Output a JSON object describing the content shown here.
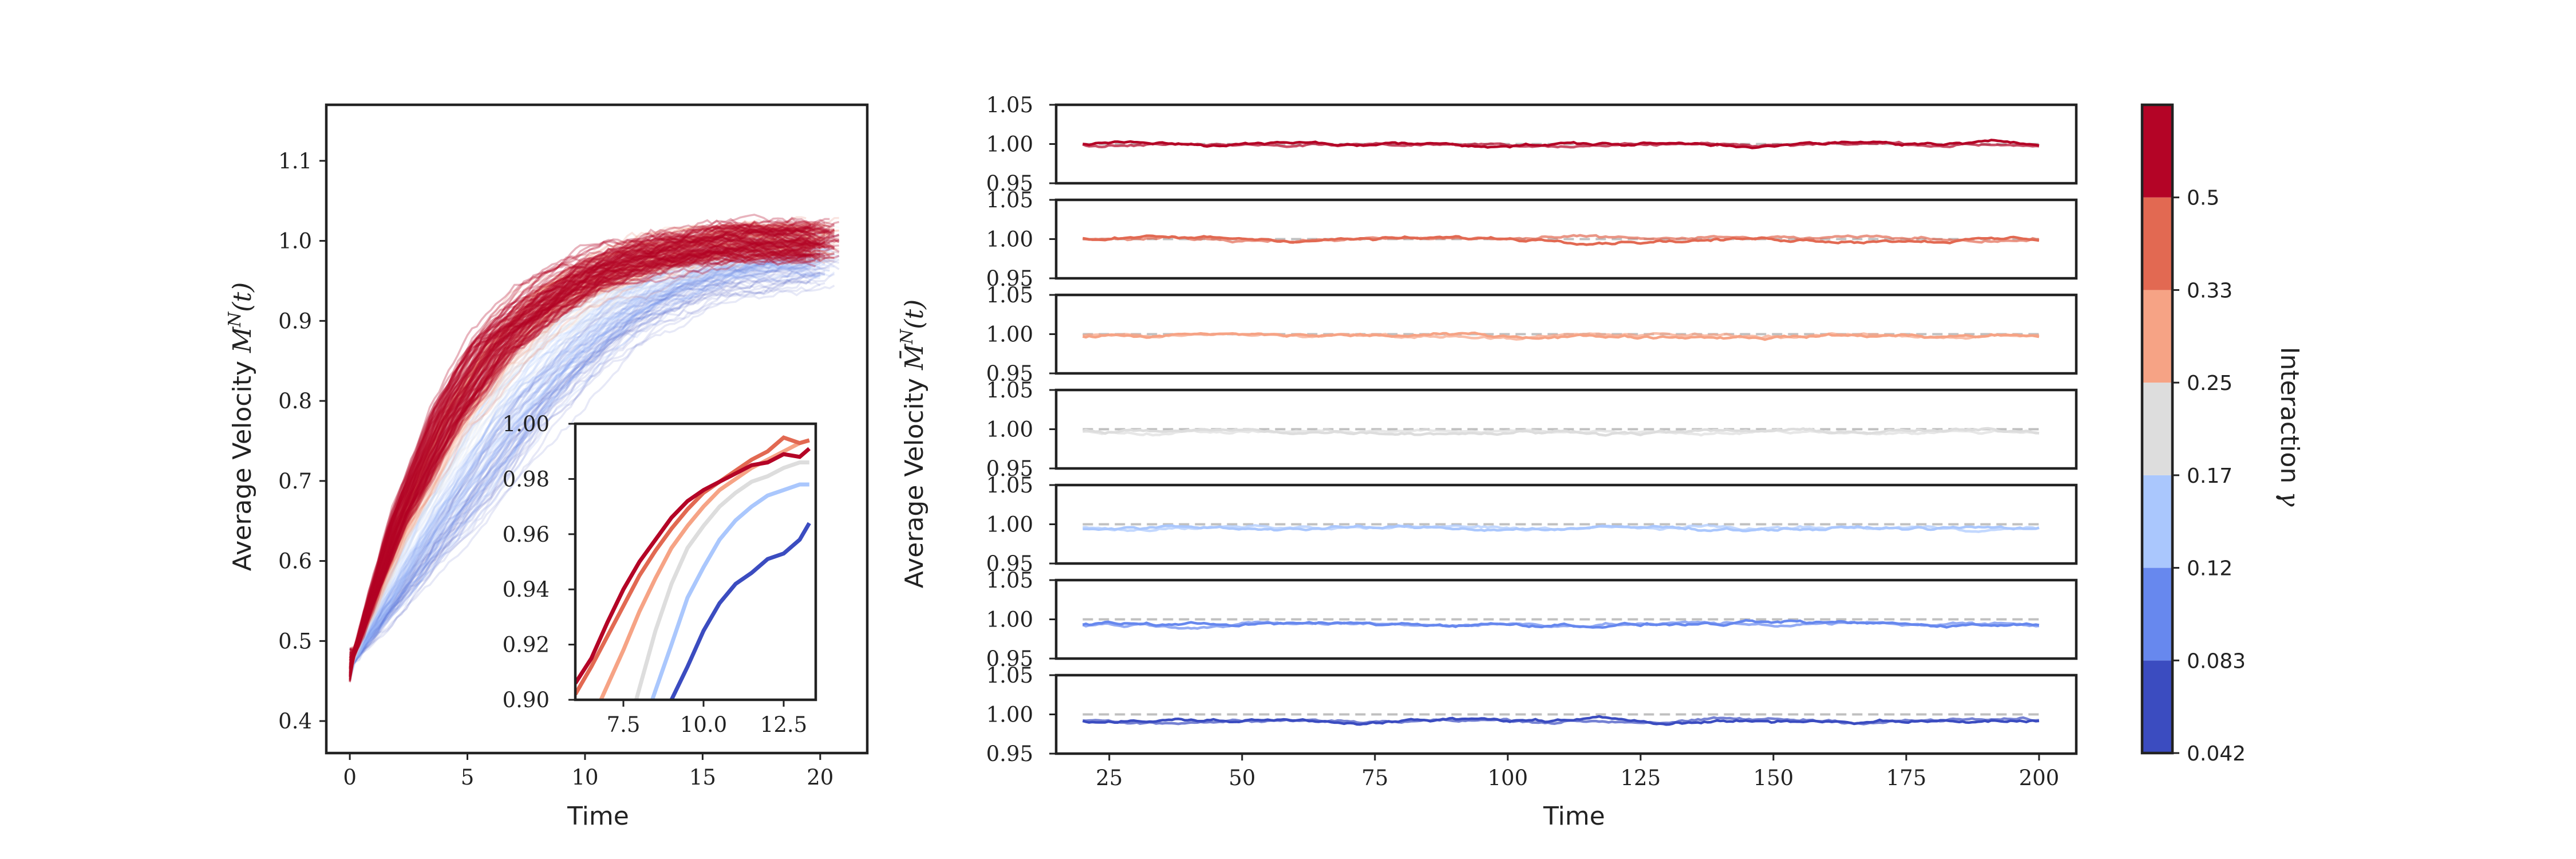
{
  "colors": {
    "palette": [
      "#3b4cc0",
      "#6788ee",
      "#aac7fd",
      "#dddddd",
      "#f6a385",
      "#e26952",
      "#b40426"
    ],
    "reference_line": "#c0c0c0"
  },
  "chart_data": [
    {
      "id": "left",
      "type": "line",
      "xlabel": "Time",
      "ylabel": "Average Velocity M^N(t)",
      "xlim": [
        -1,
        22
      ],
      "ylim": [
        0.36,
        1.17
      ],
      "xticks": [
        "0",
        "5",
        "10",
        "15",
        "20"
      ],
      "yticks": [
        "0.4",
        "0.5",
        "0.6",
        "0.7",
        "0.8",
        "0.9",
        "1.0",
        "1.1"
      ],
      "series_by_gamma": [
        {
          "gamma": 0.042,
          "approx_mean_curve": {
            "x": [
              0,
              2,
              4,
              6,
              8,
              10,
              12,
              14,
              16,
              18,
              20
            ],
            "y": [
              0.47,
              0.55,
              0.63,
              0.71,
              0.79,
              0.85,
              0.9,
              0.93,
              0.95,
              0.96,
              0.97
            ]
          }
        },
        {
          "gamma": 0.083,
          "approx_mean_curve": {
            "x": [
              0,
              2,
              4,
              6,
              8,
              10,
              12,
              14,
              16,
              18,
              20
            ],
            "y": [
              0.47,
              0.56,
              0.65,
              0.73,
              0.81,
              0.87,
              0.92,
              0.95,
              0.97,
              0.98,
              0.98
            ]
          }
        },
        {
          "gamma": 0.12,
          "approx_mean_curve": {
            "x": [
              0,
              2,
              4,
              6,
              8,
              10,
              12,
              14,
              16,
              18,
              20
            ],
            "y": [
              0.47,
              0.58,
              0.68,
              0.77,
              0.84,
              0.9,
              0.94,
              0.96,
              0.98,
              0.99,
              0.99
            ]
          }
        },
        {
          "gamma": 0.17,
          "approx_mean_curve": {
            "x": [
              0,
              2,
              4,
              6,
              8,
              10,
              12,
              14,
              16,
              18,
              20
            ],
            "y": [
              0.47,
              0.62,
              0.74,
              0.83,
              0.89,
              0.93,
              0.96,
              0.98,
              0.99,
              1.0,
              1.0
            ]
          }
        },
        {
          "gamma": 0.25,
          "approx_mean_curve": {
            "x": [
              0,
              2,
              4,
              6,
              8,
              10,
              12,
              14,
              16,
              18,
              20
            ],
            "y": [
              0.47,
              0.63,
              0.76,
              0.85,
              0.91,
              0.95,
              0.97,
              0.99,
              1.0,
              1.0,
              1.0
            ]
          }
        },
        {
          "gamma": 0.33,
          "approx_mean_curve": {
            "x": [
              0,
              2,
              4,
              6,
              8,
              10,
              12,
              14,
              16,
              18,
              20
            ],
            "y": [
              0.47,
              0.64,
              0.77,
              0.86,
              0.92,
              0.95,
              0.98,
              0.99,
              1.0,
              1.0,
              1.0
            ]
          }
        },
        {
          "gamma": 0.5,
          "approx_mean_curve": {
            "x": [
              0,
              2,
              4,
              6,
              8,
              10,
              12,
              14,
              16,
              18,
              20
            ],
            "y": [
              0.47,
              0.65,
              0.78,
              0.87,
              0.92,
              0.96,
              0.98,
              0.99,
              1.0,
              1.0,
              1.0
            ]
          }
        }
      ],
      "inset": {
        "xlim": [
          6,
          13.5
        ],
        "ylim": [
          0.9,
          1.0
        ],
        "xticks": [
          "7.5",
          "10.0",
          "12.5"
        ],
        "yticks": [
          "0.90",
          "0.92",
          "0.94",
          "0.96",
          "0.98",
          "1.00"
        ],
        "series": [
          {
            "gamma": 0.042,
            "x": [
              9.0,
              9.5,
              10.0,
              10.5,
              11.0,
              11.5,
              12.0,
              12.5,
              13.0,
              13.3
            ],
            "y": [
              0.9,
              0.912,
              0.925,
              0.935,
              0.942,
              0.946,
              0.951,
              0.953,
              0.958,
              0.964
            ]
          },
          {
            "gamma": 0.12,
            "x": [
              8.4,
              9.0,
              9.5,
              10.0,
              10.5,
              11.0,
              11.5,
              12.0,
              12.5,
              13.0,
              13.3
            ],
            "y": [
              0.9,
              0.92,
              0.937,
              0.948,
              0.958,
              0.965,
              0.97,
              0.974,
              0.976,
              0.978,
              0.978
            ]
          },
          {
            "gamma": 0.17,
            "x": [
              7.9,
              8.5,
              9.0,
              9.5,
              10.0,
              10.5,
              11.0,
              11.5,
              12.0,
              12.5,
              13.0,
              13.3
            ],
            "y": [
              0.9,
              0.925,
              0.942,
              0.955,
              0.963,
              0.97,
              0.975,
              0.979,
              0.981,
              0.984,
              0.986,
              0.986
            ]
          },
          {
            "gamma": 0.25,
            "x": [
              6.8,
              7.5,
              8.0,
              8.5,
              9.0,
              9.5,
              10.0,
              10.5,
              11.0,
              11.5,
              12.0,
              12.5,
              13.0,
              13.3
            ],
            "y": [
              0.9,
              0.918,
              0.932,
              0.944,
              0.955,
              0.963,
              0.97,
              0.976,
              0.98,
              0.984,
              0.987,
              0.99,
              0.993,
              0.994
            ]
          },
          {
            "gamma": 0.33,
            "x": [
              6.0,
              6.5,
              7.0,
              7.5,
              8.0,
              8.5,
              9.0,
              9.5,
              10.0,
              10.5,
              11.0,
              11.5,
              12.0,
              12.5,
              13.0,
              13.3
            ],
            "y": [
              0.902,
              0.912,
              0.923,
              0.934,
              0.945,
              0.954,
              0.962,
              0.969,
              0.975,
              0.979,
              0.983,
              0.987,
              0.99,
              0.995,
              0.993,
              0.994
            ]
          },
          {
            "gamma": 0.5,
            "x": [
              6.0,
              6.5,
              7.0,
              7.5,
              8.0,
              8.5,
              9.0,
              9.5,
              10.0,
              10.5,
              11.0,
              11.5,
              12.0,
              12.5,
              13.0,
              13.3
            ],
            "y": [
              0.906,
              0.915,
              0.928,
              0.94,
              0.95,
              0.958,
              0.966,
              0.972,
              0.976,
              0.979,
              0.982,
              0.985,
              0.986,
              0.989,
              0.988,
              0.991
            ]
          }
        ]
      }
    },
    {
      "id": "right",
      "type": "line",
      "xlabel": "Time",
      "ylabel": "Average Velocity M̄^N(t)",
      "xlim": [
        15,
        207
      ],
      "ylim_each_panel": [
        0.95,
        1.05
      ],
      "xticks": [
        "25",
        "50",
        "75",
        "100",
        "125",
        "150",
        "175",
        "200"
      ],
      "yticks": [
        "0.95",
        "1.00",
        "1.05"
      ],
      "reference_y": 1.0,
      "panels": [
        {
          "gamma": 0.5,
          "mean_level": 1.0
        },
        {
          "gamma": 0.33,
          "mean_level": 1.0
        },
        {
          "gamma": 0.25,
          "mean_level": 0.998
        },
        {
          "gamma": 0.17,
          "mean_level": 0.997
        },
        {
          "gamma": 0.12,
          "mean_level": 0.995
        },
        {
          "gamma": 0.083,
          "mean_level": 0.994
        },
        {
          "gamma": 0.042,
          "mean_level": 0.992
        }
      ]
    },
    {
      "id": "colorbar",
      "type": "colorbar",
      "label": "Interaction γ",
      "tick_labels": [
        "0.042",
        "0.083",
        "0.12",
        "0.17",
        "0.25",
        "0.33",
        "0.5"
      ]
    }
  ]
}
